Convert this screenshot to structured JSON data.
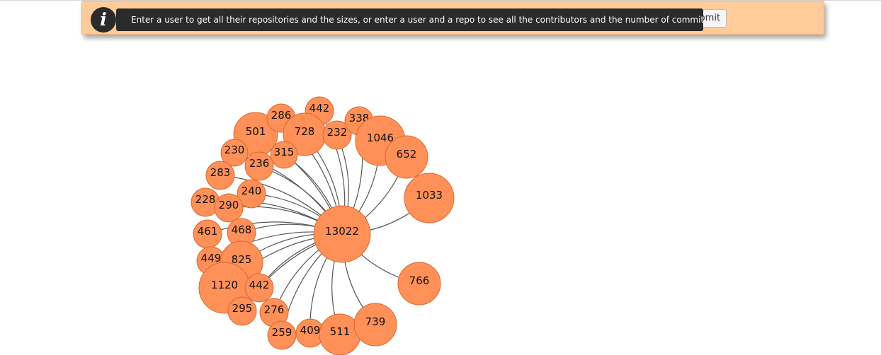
{
  "banner": {
    "info_icon": "info-icon",
    "info_glyph": "i",
    "message": "Enter a user to get all their repositories and the sizes, or enter a user and a repo to see all the contributors and the number of commits.",
    "submit_label": "Submit"
  },
  "graph": {
    "center_label": "13022",
    "colors": {
      "node_fill": "#ff9058",
      "node_stroke": "#d96a2e",
      "link": "#555555"
    },
    "nodes": [
      "501",
      "286",
      "442",
      "728",
      "232",
      "338",
      "1046",
      "652",
      "1033",
      "230",
      "315",
      "236",
      "283",
      "240",
      "228",
      "290",
      "461",
      "468",
      "449",
      "825",
      "1120",
      "442",
      "295",
      "276",
      "259",
      "409",
      "511",
      "739",
      "766"
    ]
  }
}
